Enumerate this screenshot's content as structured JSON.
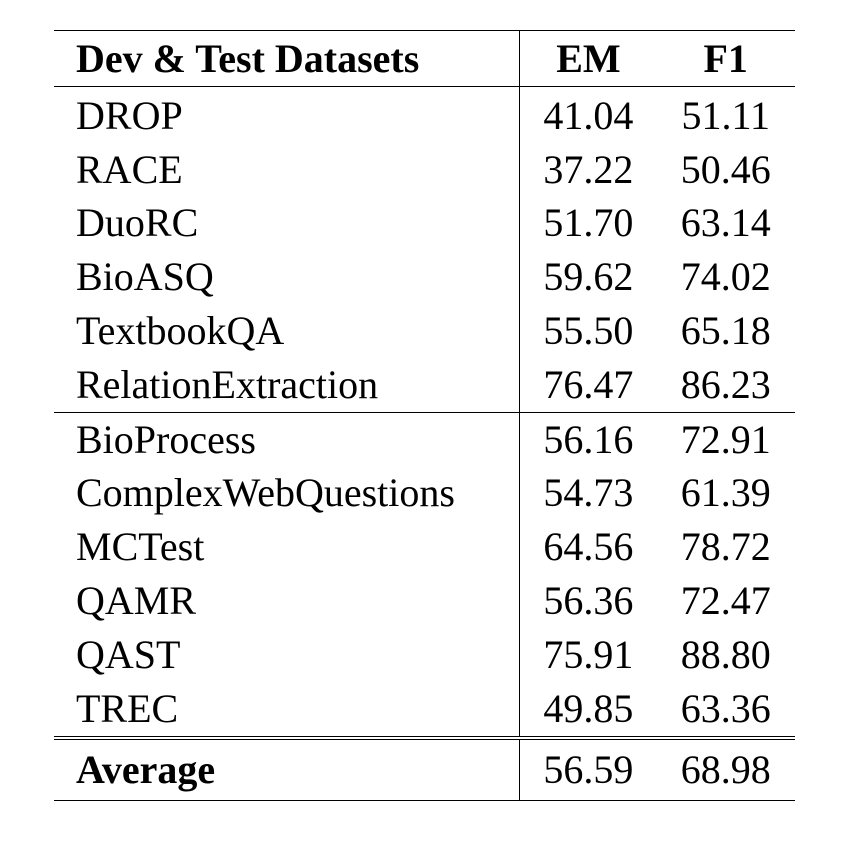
{
  "table": {
    "headers": {
      "name": "Dev & Test Datasets",
      "em": "EM",
      "f1": "F1"
    },
    "group1": [
      {
        "name": "DROP",
        "em": "41.04",
        "f1": "51.11"
      },
      {
        "name": "RACE",
        "em": "37.22",
        "f1": "50.46"
      },
      {
        "name": "DuoRC",
        "em": "51.70",
        "f1": "63.14"
      },
      {
        "name": "BioASQ",
        "em": "59.62",
        "f1": "74.02"
      },
      {
        "name": "TextbookQA",
        "em": "55.50",
        "f1": "65.18"
      },
      {
        "name": "RelationExtraction",
        "em": "76.47",
        "f1": "86.23"
      }
    ],
    "group2": [
      {
        "name": "BioProcess",
        "em": "56.16",
        "f1": "72.91"
      },
      {
        "name": "ComplexWebQuestions",
        "em": "54.73",
        "f1": "61.39"
      },
      {
        "name": "MCTest",
        "em": "64.56",
        "f1": "78.72"
      },
      {
        "name": "QAMR",
        "em": "56.36",
        "f1": "72.47"
      },
      {
        "name": "QAST",
        "em": "75.91",
        "f1": "88.80"
      },
      {
        "name": "TREC",
        "em": "49.85",
        "f1": "63.36"
      }
    ],
    "average": {
      "name": "Average",
      "em": "56.59",
      "f1": "68.98"
    }
  }
}
